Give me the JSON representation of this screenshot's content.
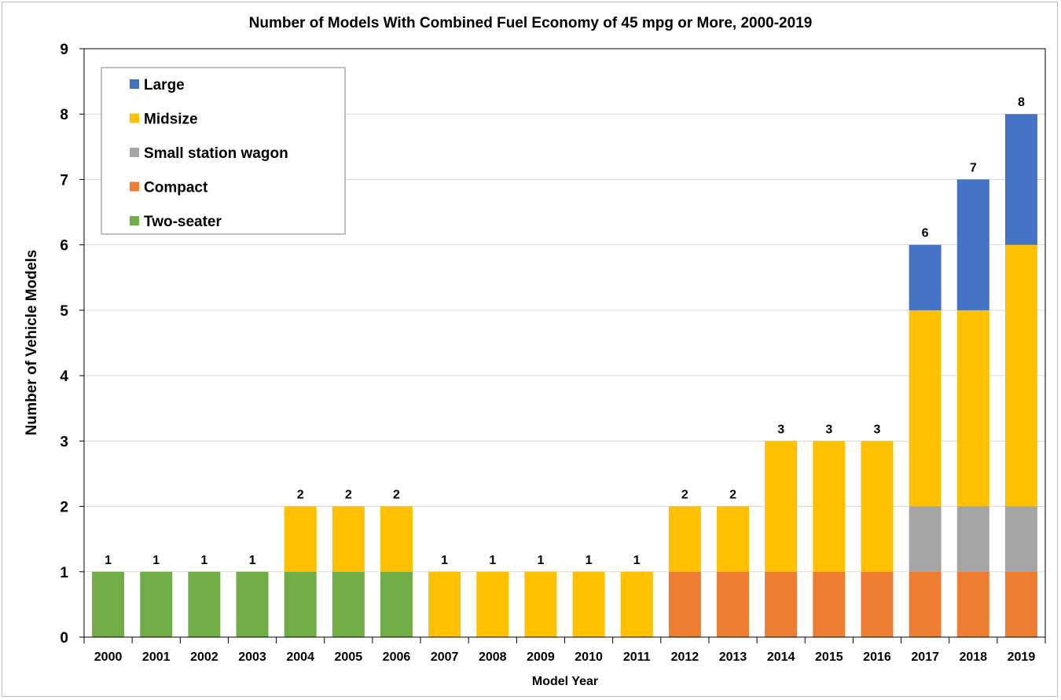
{
  "chart_data": {
    "type": "bar",
    "stacked": true,
    "title": "Number of Models With Combined Fuel Economy of 45 mpg or More, 2000-2019",
    "xlabel": "Model Year",
    "ylabel": "Number of Vehicle Models",
    "ylim": [
      0,
      9
    ],
    "yticks": [
      "0",
      "1",
      "2",
      "3",
      "4",
      "5",
      "6",
      "7",
      "8",
      "9"
    ],
    "grid": true,
    "legend_position": "top-left",
    "categories": [
      "2000",
      "2001",
      "2002",
      "2003",
      "2004",
      "2005",
      "2006",
      "2007",
      "2008",
      "2009",
      "2010",
      "2011",
      "2012",
      "2013",
      "2014",
      "2015",
      "2016",
      "2017",
      "2018",
      "2019"
    ],
    "series": [
      {
        "name": "Two-seater",
        "color": "#70ad47",
        "values": [
          1,
          1,
          1,
          1,
          1,
          1,
          1,
          0,
          0,
          0,
          0,
          0,
          0,
          0,
          0,
          0,
          0,
          0,
          0,
          0
        ]
      },
      {
        "name": "Compact",
        "color": "#ed7d31",
        "values": [
          0,
          0,
          0,
          0,
          0,
          0,
          0,
          0,
          0,
          0,
          0,
          0,
          1,
          1,
          1,
          1,
          1,
          1,
          1,
          1
        ]
      },
      {
        "name": "Small station wagon",
        "color": "#a5a5a5",
        "values": [
          0,
          0,
          0,
          0,
          0,
          0,
          0,
          0,
          0,
          0,
          0,
          0,
          0,
          0,
          0,
          0,
          0,
          1,
          1,
          1
        ]
      },
      {
        "name": "Midsize",
        "color": "#ffc000",
        "values": [
          0,
          0,
          0,
          0,
          1,
          1,
          1,
          1,
          1,
          1,
          1,
          1,
          1,
          1,
          2,
          2,
          2,
          3,
          3,
          4
        ]
      },
      {
        "name": "Large",
        "color": "#4472c4",
        "values": [
          0,
          0,
          0,
          0,
          0,
          0,
          0,
          0,
          0,
          0,
          0,
          0,
          0,
          0,
          0,
          0,
          0,
          1,
          2,
          2
        ]
      }
    ],
    "totals": [
      "1",
      "1",
      "1",
      "1",
      "2",
      "2",
      "2",
      "1",
      "1",
      "1",
      "1",
      "1",
      "2",
      "2",
      "3",
      "3",
      "3",
      "6",
      "7",
      "8"
    ],
    "legend": [
      "Large",
      "Midsize",
      "Small station wagon",
      "Compact",
      "Two-seater"
    ]
  }
}
